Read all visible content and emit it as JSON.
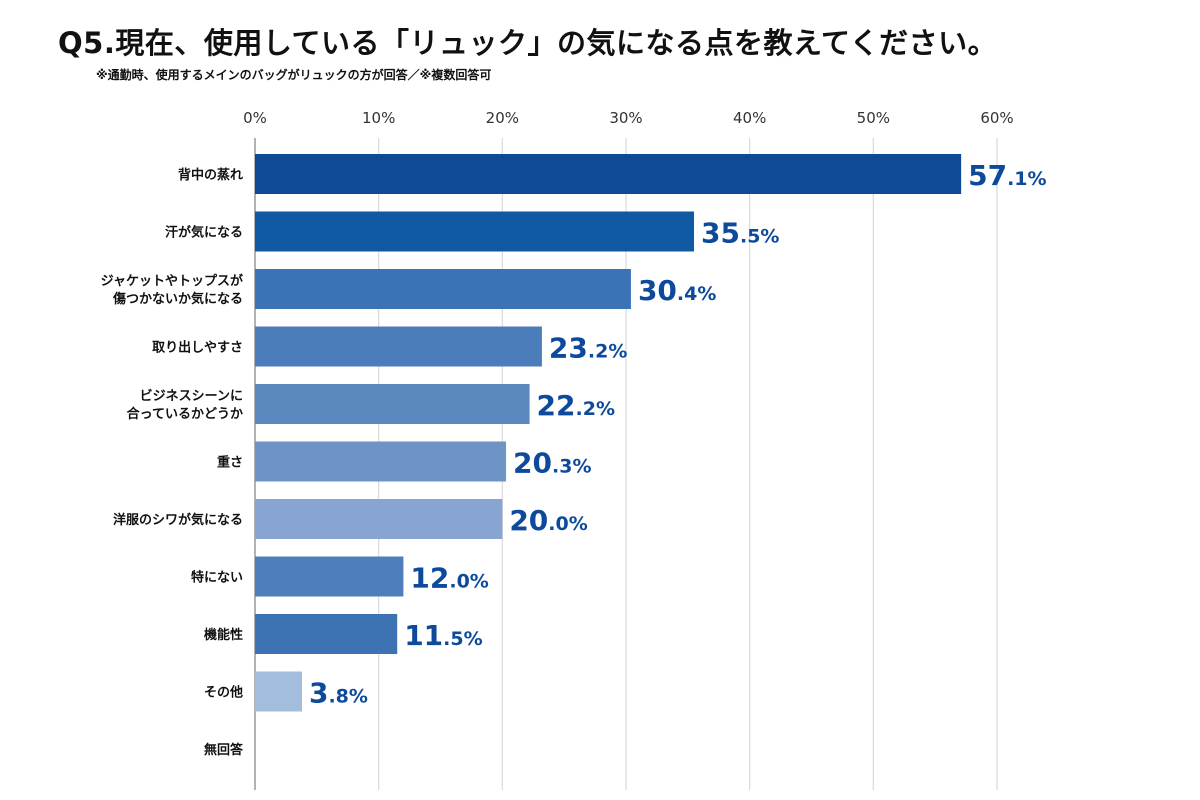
{
  "chart_data": {
    "type": "bar",
    "orientation": "horizontal",
    "title": "Q5.現在、使用している「リュック」の気になる点を教えてください。",
    "subtitle": "※通勤時、使用するメインのバッグがリュックの方が回答／※複数回答可",
    "xlim": [
      0,
      60
    ],
    "xticks": [
      0,
      10,
      20,
      30,
      40,
      50,
      60
    ],
    "xtick_labels": [
      "0%",
      "10%",
      "20%",
      "30%",
      "40%",
      "50%",
      "60%"
    ],
    "grid": true,
    "categories": [
      [
        "背中の蒸れ"
      ],
      [
        "汗が気になる"
      ],
      [
        "ジャケットやトップスが",
        "傷つかないか気になる"
      ],
      [
        "取り出しやすさ"
      ],
      [
        "ビジネスシーンに",
        "合っているかどうか"
      ],
      [
        "重さ"
      ],
      [
        "洋服のシワが気になる"
      ],
      [
        "特にない"
      ],
      [
        "機能性"
      ],
      [
        "その他"
      ],
      [
        "無回答"
      ]
    ],
    "values": [
      57.1,
      35.5,
      30.4,
      23.2,
      22.2,
      20.3,
      20.0,
      12.0,
      11.5,
      3.8,
      null
    ],
    "value_labels": [
      [
        "57",
        ".1%"
      ],
      [
        "35",
        ".5%"
      ],
      [
        "30",
        ".4%"
      ],
      [
        "23",
        ".2%"
      ],
      [
        "22",
        ".2%"
      ],
      [
        "20",
        ".3%"
      ],
      [
        "20",
        ".0%"
      ],
      [
        "12",
        ".0%"
      ],
      [
        "11",
        ".5%"
      ],
      [
        "3",
        ".8%"
      ],
      null
    ],
    "colors": [
      "#0e4a96",
      "#1259a3",
      "#3a74b4",
      "#4a7dba",
      "#5c88c0",
      "#6e93c5",
      "#87a5d0",
      "#4f7fbb",
      "#3d72b3",
      "#a3bedd",
      "#cccccc"
    ]
  }
}
